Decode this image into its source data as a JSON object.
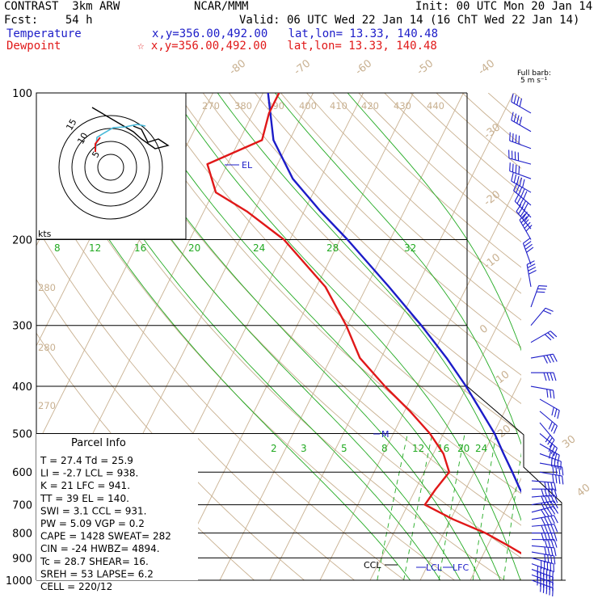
{
  "header": {
    "model": "CONTRAST  3km ARW",
    "fcst": "Fcst:    54 h",
    "org": "NCAR/MMM",
    "init": "Init: 00 UTC Mon 20 Jan 14",
    "valid": "Valid: 06 UTC Wed 22 Jan 14 (16 ChT Wed 22 Jan 14)",
    "temp_label": "Temperature",
    "temp_loc": "x,y=356.00,492.00   lat,lon= 13.33, 140.48",
    "dew_label": "Dewpoint",
    "dew_loc": "☆ x,y=356.00,492.00   lat,lon= 13.33, 140.48",
    "barb_title_1": "Full barb:",
    "barb_title_2": "5 m s⁻¹"
  },
  "colors": {
    "temperature": "#1c1cc8",
    "dewpoint": "#e01818",
    "isotherm": "#c8b090",
    "mixing_ratio": "#22aa22",
    "wind_barb": "#1c1cc8"
  },
  "parcel": {
    "title": "Parcel Info",
    "rows": [
      "T  =    27.4 Td =  25.9",
      "LI =    -2.7 LCL =  938.",
      "K  =      21 LFC =  941.",
      "TT =      39 EL  =  140.",
      "SWI =    3.1 CCL =  931.",
      "PW =   5.09 VGP =   0.2",
      "CAPE =  1428 SWEAT=  282",
      "CIN =    -24 HWBZ= 4894.",
      "Tc =   28.7 SHEAR=  16.",
      "SREH =    53 LAPSE=  6.2",
      "CELL = 220/12"
    ]
  },
  "hodograph": {
    "units": "kts",
    "ring_labels": [
      "5",
      "10",
      "15"
    ]
  },
  "chart_data": {
    "type": "line",
    "title": "",
    "y_axis": {
      "scale": "log",
      "units": "hPa",
      "ticks": [
        100,
        200,
        300,
        400,
        500,
        600,
        700,
        800,
        900,
        1000
      ]
    },
    "isotherm_labels": [
      "-80",
      "-70",
      "-60",
      "-50",
      "-40",
      "-30",
      "-20",
      "-10",
      "0",
      "10",
      "20",
      "30",
      "40"
    ],
    "theta_labels": [
      "270",
      "380",
      "390",
      "400",
      "410",
      "420",
      "430",
      "440",
      "280",
      "280",
      "270"
    ],
    "mixing_ratio_labels_upper": [
      "8",
      "12",
      "16",
      "20",
      "24",
      "28",
      "32"
    ],
    "mixing_ratio_labels_lower": [
      "2",
      "3",
      "5",
      "8",
      "12",
      "16",
      "20",
      "24"
    ],
    "annotations": {
      "el": "EL",
      "m": "M",
      "ccl": "CCL",
      "lcl": "LCL",
      "lfc": "LFC"
    },
    "series": [
      {
        "name": "Temperature",
        "points": [
          [
            1000,
            27.4
          ],
          [
            975,
            25.6
          ],
          [
            950,
            24.3
          ],
          [
            925,
            23.5
          ],
          [
            900,
            22.8
          ],
          [
            850,
            20.6
          ],
          [
            800,
            18.1
          ],
          [
            750,
            15.8
          ],
          [
            700,
            14.2
          ],
          [
            650,
            10.8
          ],
          [
            600,
            7.6
          ],
          [
            550,
            4.0
          ],
          [
            500,
            0.2
          ],
          [
            450,
            -4.7
          ],
          [
            400,
            -10.2
          ],
          [
            350,
            -16.9
          ],
          [
            300,
            -25.2
          ],
          [
            250,
            -35.5
          ],
          [
            200,
            -48.5
          ],
          [
            175,
            -56.7
          ],
          [
            150,
            -65.5
          ],
          [
            125,
            -73.2
          ],
          [
            100,
            -79.0
          ]
        ]
      },
      {
        "name": "Dewpoint",
        "points": [
          [
            1000,
            25.9
          ],
          [
            975,
            25.0
          ],
          [
            950,
            23.3
          ],
          [
            925,
            21.4
          ],
          [
            900,
            19.5
          ],
          [
            850,
            14.2
          ],
          [
            800,
            8.3
          ],
          [
            750,
            0.5
          ],
          [
            700,
            -6.6
          ],
          [
            650,
            -6.0
          ],
          [
            600,
            -5.0
          ],
          [
            550,
            -8.0
          ],
          [
            500,
            -12.7
          ],
          [
            450,
            -18.9
          ],
          [
            400,
            -26.4
          ],
          [
            350,
            -34.2
          ],
          [
            300,
            -40.2
          ],
          [
            250,
            -48.2
          ],
          [
            200,
            -61.2
          ],
          [
            175,
            -71.4
          ],
          [
            160,
            -79.5
          ],
          [
            140,
            -84.0
          ],
          [
            125,
            -75.5
          ],
          [
            110,
            -76.8
          ],
          [
            100,
            -76.8
          ]
        ]
      }
    ],
    "wind_profile": [
      {
        "p": 1000,
        "dir": 110,
        "spd": 4.5
      },
      {
        "p": 975,
        "dir": 110,
        "spd": 5.5
      },
      {
        "p": 950,
        "dir": 110,
        "spd": 6
      },
      {
        "p": 925,
        "dir": 110,
        "spd": 6
      },
      {
        "p": 900,
        "dir": 105,
        "spd": 5
      },
      {
        "p": 875,
        "dir": 100,
        "spd": 4
      },
      {
        "p": 850,
        "dir": 95,
        "spd": 4
      },
      {
        "p": 825,
        "dir": 90,
        "spd": 4
      },
      {
        "p": 800,
        "dir": 90,
        "spd": 4.5
      },
      {
        "p": 775,
        "dir": 85,
        "spd": 5
      },
      {
        "p": 750,
        "dir": 80,
        "spd": 5
      },
      {
        "p": 725,
        "dir": 75,
        "spd": 5
      },
      {
        "p": 700,
        "dir": 80,
        "spd": 5
      },
      {
        "p": 675,
        "dir": 85,
        "spd": 5
      },
      {
        "p": 650,
        "dir": 90,
        "spd": 4.5
      },
      {
        "p": 625,
        "dir": 95,
        "spd": 4
      },
      {
        "p": 600,
        "dir": 100,
        "spd": 4
      },
      {
        "p": 575,
        "dir": 100,
        "spd": 4
      },
      {
        "p": 550,
        "dir": 110,
        "spd": 4
      },
      {
        "p": 525,
        "dir": 120,
        "spd": 3.5
      },
      {
        "p": 500,
        "dir": 130,
        "spd": 3
      },
      {
        "p": 475,
        "dir": 140,
        "spd": 3
      },
      {
        "p": 450,
        "dir": 130,
        "spd": 3
      },
      {
        "p": 425,
        "dir": 120,
        "spd": 3
      },
      {
        "p": 400,
        "dir": 100,
        "spd": 3
      },
      {
        "p": 375,
        "dir": 90,
        "spd": 3.5
      },
      {
        "p": 350,
        "dir": 80,
        "spd": 3.5
      },
      {
        "p": 325,
        "dir": 60,
        "spd": 3
      },
      {
        "p": 300,
        "dir": 40,
        "spd": 2
      },
      {
        "p": 275,
        "dir": 20,
        "spd": 3
      },
      {
        "p": 250,
        "dir": 350,
        "spd": 3.5
      },
      {
        "p": 225,
        "dir": 340,
        "spd": 4
      },
      {
        "p": 200,
        "dir": 330,
        "spd": 4.5
      },
      {
        "p": 190,
        "dir": 320,
        "spd": 5
      },
      {
        "p": 180,
        "dir": 315,
        "spd": 5
      },
      {
        "p": 170,
        "dir": 310,
        "spd": 5
      },
      {
        "p": 160,
        "dir": 300,
        "spd": 4.5
      },
      {
        "p": 150,
        "dir": 290,
        "spd": 4
      },
      {
        "p": 140,
        "dir": 285,
        "spd": 4
      },
      {
        "p": 130,
        "dir": 290,
        "spd": 4
      },
      {
        "p": 120,
        "dir": 300,
        "spd": 4
      },
      {
        "p": 110,
        "dir": 300,
        "spd": 4
      }
    ]
  }
}
